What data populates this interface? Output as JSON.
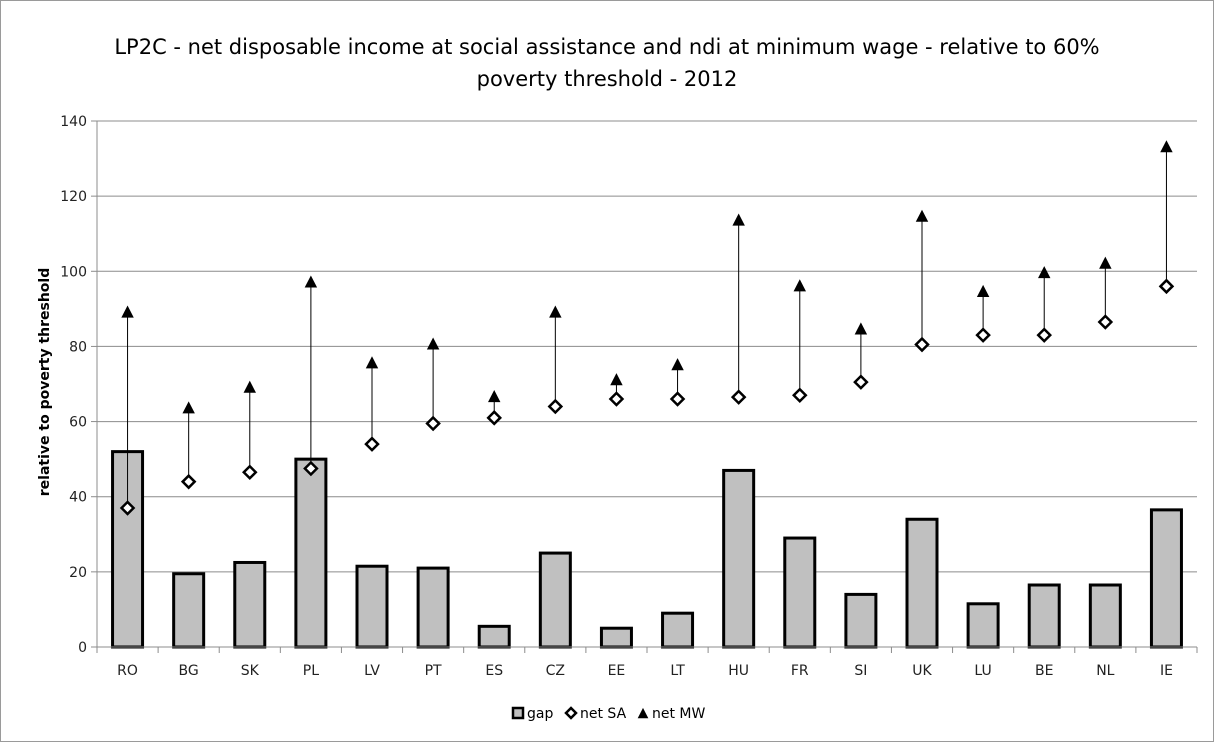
{
  "chart_data": {
    "type": "bar",
    "title_line1": "LP2C - net disposable income at social assistance and ndi at minimum wage - relative to 60%",
    "title_line2": "poverty threshold - 2012",
    "xlabel": "",
    "ylabel": "relative to poverty threshold",
    "ylim": [
      0,
      140
    ],
    "yticks": [
      0,
      20,
      40,
      60,
      80,
      100,
      120,
      140
    ],
    "grid": true,
    "legend_position": "bottom",
    "categories": [
      "RO",
      "BG",
      "SK",
      "PL",
      "LV",
      "PT",
      "ES",
      "CZ",
      "EE",
      "LT",
      "HU",
      "FR",
      "SI",
      "UK",
      "LU",
      "BE",
      "NL",
      "IE"
    ],
    "series": [
      {
        "name": "gap",
        "kind": "bar",
        "color": "#c0c0c0",
        "edge": "#000000",
        "values": [
          52,
          19.5,
          22.5,
          50,
          21.5,
          21,
          5.5,
          25,
          5,
          9,
          47,
          29,
          14,
          34,
          11.5,
          16.5,
          16.5,
          36.5
        ]
      },
      {
        "name": "net SA",
        "kind": "marker",
        "marker": "diamond",
        "color": "#000000",
        "values": [
          37,
          44,
          46.5,
          47.5,
          54,
          59.5,
          61,
          64,
          66,
          66,
          66.5,
          67,
          70.5,
          80.5,
          83,
          83,
          86.5,
          96
        ]
      },
      {
        "name": "net MW",
        "kind": "marker",
        "marker": "triangle",
        "color": "#000000",
        "values": [
          89,
          63.5,
          69,
          97,
          75.5,
          80.5,
          66.5,
          89,
          71,
          75,
          113.5,
          96,
          84.5,
          114.5,
          94.5,
          99.5,
          102,
          133
        ]
      }
    ]
  }
}
